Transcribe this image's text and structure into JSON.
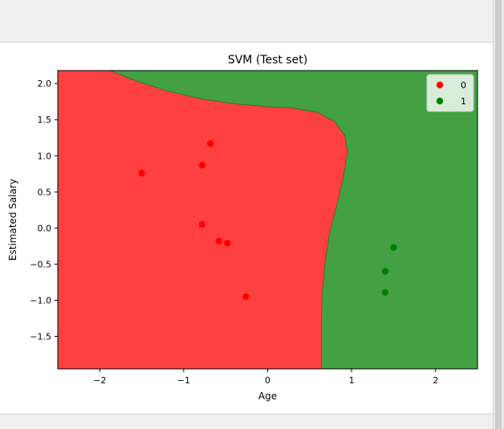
{
  "chart_data": {
    "type": "scatter",
    "title": "SVM (Test set)",
    "xlabel": "Age",
    "ylabel": "Estimated Salary",
    "xlim": [
      -2.5,
      2.5
    ],
    "ylim": [
      -1.95,
      2.18
    ],
    "x_ticks": [
      -2,
      -1,
      0,
      1,
      2
    ],
    "x_tick_labels": [
      "−2",
      "−1",
      "0",
      "1",
      "2"
    ],
    "y_ticks": [
      2.0,
      1.5,
      1.0,
      0.5,
      0.0,
      -0.5,
      -1.0,
      -1.5
    ],
    "y_tick_labels": [
      "2.0",
      "1.5",
      "1.0",
      "0.5",
      "0.0",
      "−0.5",
      "−1.0",
      "−1.5"
    ],
    "grid": false,
    "legend_position": "top-right",
    "regions": [
      {
        "class": "0",
        "color": "#ff4040"
      },
      {
        "class": "1",
        "color": "#43a043"
      }
    ],
    "decision_boundary": [
      [
        -1.88,
        2.18
      ],
      [
        -1.55,
        2.03
      ],
      [
        -1.2,
        1.9
      ],
      [
        -0.8,
        1.79
      ],
      [
        -0.4,
        1.72
      ],
      [
        0.0,
        1.68
      ],
      [
        0.3,
        1.66
      ],
      [
        0.6,
        1.6
      ],
      [
        0.8,
        1.47
      ],
      [
        0.92,
        1.28
      ],
      [
        0.95,
        1.05
      ],
      [
        0.9,
        0.7
      ],
      [
        0.82,
        0.3
      ],
      [
        0.74,
        -0.05
      ],
      [
        0.68,
        -0.5
      ],
      [
        0.65,
        -0.9
      ],
      [
        0.64,
        -1.3
      ],
      [
        0.64,
        -1.7
      ],
      [
        0.64,
        -1.95
      ]
    ],
    "series": [
      {
        "name": "0",
        "color": "#ff0000",
        "points": [
          [
            -1.5,
            0.76
          ],
          [
            -0.68,
            1.17
          ],
          [
            -0.78,
            0.87
          ],
          [
            -0.78,
            0.05
          ],
          [
            -0.58,
            -0.18
          ],
          [
            -0.48,
            -0.21
          ],
          [
            -0.26,
            -0.95
          ]
        ]
      },
      {
        "name": "1",
        "color": "#008000",
        "points": [
          [
            1.5,
            -0.27
          ],
          [
            1.4,
            -0.6
          ],
          [
            1.4,
            -0.89
          ]
        ]
      }
    ]
  }
}
